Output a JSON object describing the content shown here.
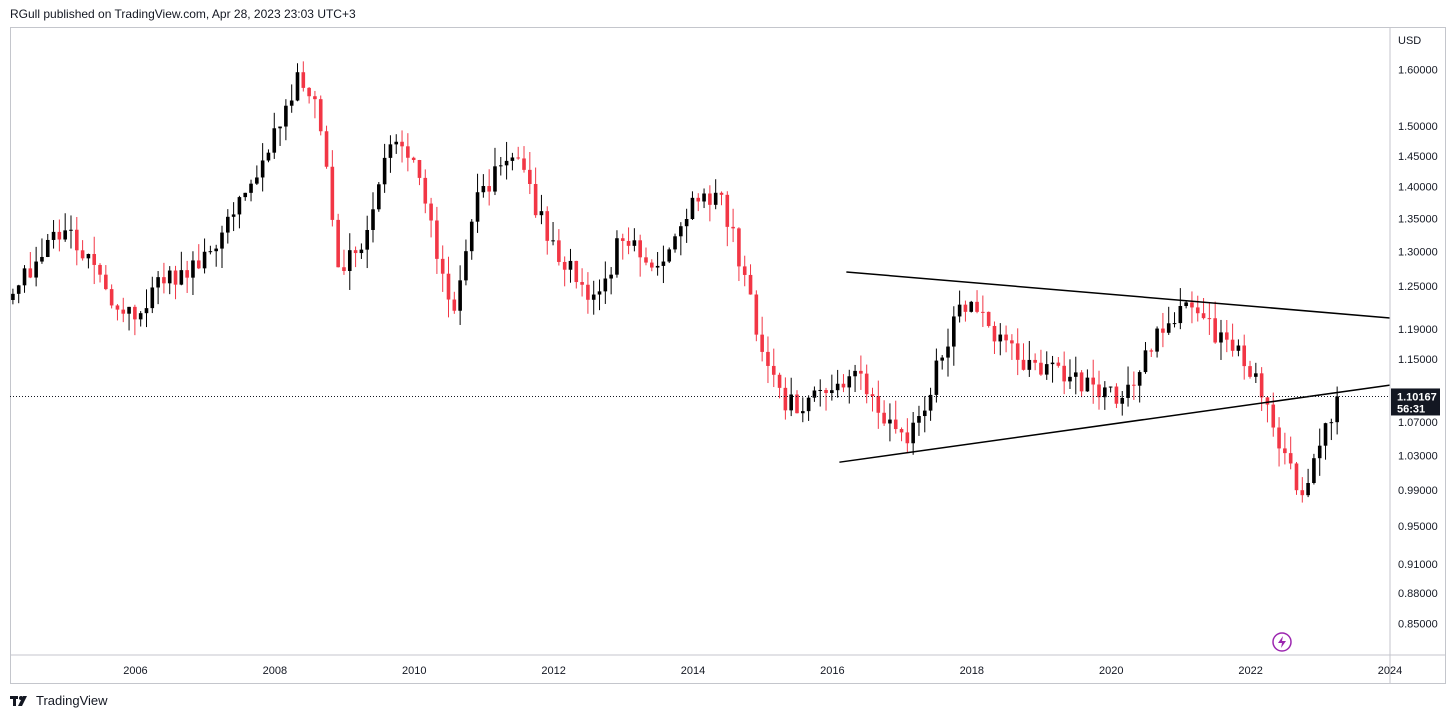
{
  "header": {
    "publisher": "RGull published on TradingView.com, Apr 28, 2023 23:03 UTC+3"
  },
  "footer": {
    "brand": "TradingView"
  },
  "colors": {
    "up": "#000000",
    "down": "#f23645",
    "line": "#000000",
    "badge": "#131722"
  },
  "chart_data": {
    "type": "candlestick",
    "symbol_currency": "USD",
    "xlim": [
      2004.2,
      2024.0
    ],
    "ylim": [
      0.82,
      1.68
    ],
    "y_scale": "log",
    "x_ticks": [
      "2006",
      "2008",
      "2010",
      "2012",
      "2014",
      "2016",
      "2018",
      "2020",
      "2022",
      "2024"
    ],
    "x_tick_values": [
      2006,
      2008,
      2010,
      2012,
      2014,
      2016,
      2018,
      2020,
      2022,
      2024
    ],
    "y_ticks": [
      "1.60000",
      "1.50000",
      "1.45000",
      "1.40000",
      "1.35000",
      "1.30000",
      "1.25000",
      "1.19000",
      "1.15000",
      "1.07000",
      "1.03000",
      "0.99000",
      "0.95000",
      "0.91000",
      "0.88000",
      "0.85000"
    ],
    "y_tick_values": [
      1.6,
      1.5,
      1.45,
      1.4,
      1.35,
      1.3,
      1.25,
      1.19,
      1.15,
      1.07,
      1.03,
      0.99,
      0.95,
      0.91,
      0.88,
      0.85
    ],
    "last_price": {
      "value": 1.10167,
      "label": "1.10167",
      "countdown": "56:31"
    },
    "trendlines": [
      {
        "name": "upper-triangle-line",
        "x1": 2016.2,
        "y1": 1.27,
        "x2": 2024.0,
        "y2": 1.205
      },
      {
        "name": "lower-triangle-line",
        "x1": 2016.1,
        "y1": 1.022,
        "x2": 2024.0,
        "y2": 1.116
      }
    ],
    "anchors": [
      [
        2004.2,
        1.23
      ],
      [
        2004.9,
        1.33
      ],
      [
        2005.3,
        1.3
      ],
      [
        2005.7,
        1.22
      ],
      [
        2006.0,
        1.2
      ],
      [
        2006.3,
        1.25
      ],
      [
        2006.8,
        1.28
      ],
      [
        2007.2,
        1.32
      ],
      [
        2007.8,
        1.42
      ],
      [
        2008.3,
        1.58
      ],
      [
        2008.6,
        1.55
      ],
      [
        2008.9,
        1.28
      ],
      [
        2009.2,
        1.3
      ],
      [
        2009.7,
        1.48
      ],
      [
        2010.0,
        1.44
      ],
      [
        2010.4,
        1.27
      ],
      [
        2010.6,
        1.21
      ],
      [
        2010.9,
        1.38
      ],
      [
        2011.4,
        1.46
      ],
      [
        2011.8,
        1.35
      ],
      [
        2012.3,
        1.26
      ],
      [
        2012.6,
        1.22
      ],
      [
        2013.0,
        1.33
      ],
      [
        2013.5,
        1.28
      ],
      [
        2014.0,
        1.37
      ],
      [
        2014.4,
        1.38
      ],
      [
        2014.7,
        1.28
      ],
      [
        2015.0,
        1.15
      ],
      [
        2015.3,
        1.09
      ],
      [
        2016.0,
        1.1
      ],
      [
        2016.4,
        1.13
      ],
      [
        2016.9,
        1.05
      ],
      [
        2017.2,
        1.06
      ],
      [
        2017.6,
        1.17
      ],
      [
        2018.0,
        1.24
      ],
      [
        2018.4,
        1.17
      ],
      [
        2018.9,
        1.14
      ],
      [
        2019.5,
        1.12
      ],
      [
        2019.9,
        1.11
      ],
      [
        2020.2,
        1.1
      ],
      [
        2020.6,
        1.17
      ],
      [
        2021.0,
        1.22
      ],
      [
        2021.3,
        1.2
      ],
      [
        2021.7,
        1.17
      ],
      [
        2022.0,
        1.14
      ],
      [
        2022.3,
        1.07
      ],
      [
        2022.75,
        0.98
      ],
      [
        2022.95,
        1.04
      ],
      [
        2023.3,
        1.1
      ]
    ]
  }
}
